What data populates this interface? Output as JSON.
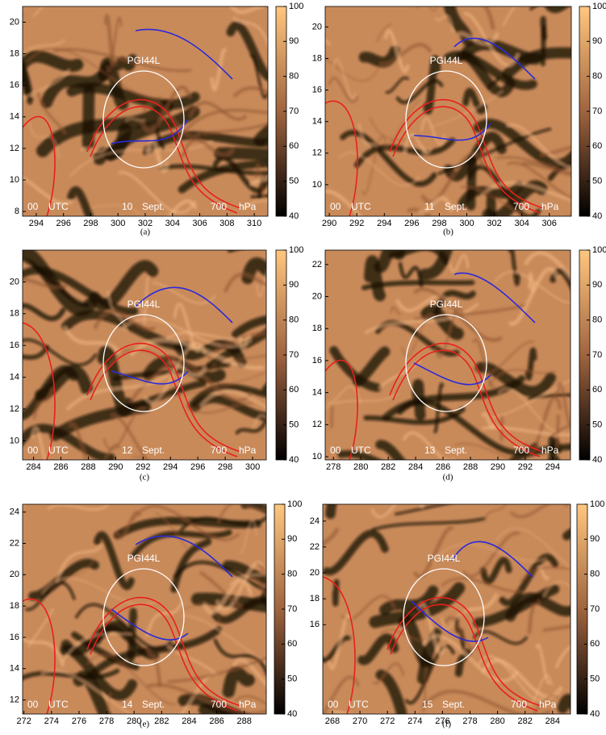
{
  "chart_data": [
    {
      "type": "heatmap",
      "label": "PGI44L",
      "time": "00",
      "time_unit": "UTC",
      "day": "10",
      "month": "Sept.",
      "level": "700",
      "level_unit": "hPa",
      "caption": "(a)",
      "xlim": [
        293,
        311
      ],
      "xticks": [
        294,
        296,
        298,
        300,
        302,
        304,
        306,
        308,
        310
      ],
      "ylim": [
        7.7,
        21
      ],
      "yticks": [
        8,
        10,
        12,
        14,
        16,
        18,
        20
      ],
      "clim": [
        40,
        100
      ],
      "cticks": [
        40,
        50,
        60,
        70,
        80,
        90,
        100
      ]
    },
    {
      "type": "heatmap",
      "label": "PGI44L",
      "time": "00",
      "time_unit": "UTC",
      "day": "11",
      "month": "Sept.",
      "level": "700",
      "level_unit": "hPa",
      "caption": "(b)",
      "xlim": [
        289.7,
        307.6
      ],
      "xticks": [
        290,
        292,
        294,
        296,
        298,
        300,
        302,
        304,
        306
      ],
      "ylim": [
        8,
        21.3
      ],
      "yticks": [
        10,
        12,
        14,
        16,
        18,
        20
      ],
      "clim": [
        40,
        100
      ],
      "cticks": [
        40,
        50,
        60,
        70,
        80,
        90,
        100
      ]
    },
    {
      "type": "heatmap",
      "label": "PGI44L",
      "time": "00",
      "time_unit": "UTC",
      "day": "12",
      "month": "Sept.",
      "level": "700",
      "level_unit": "hPa",
      "caption": "(c)",
      "xlim": [
        283.2,
        301
      ],
      "xticks": [
        284,
        286,
        288,
        290,
        292,
        294,
        296,
        298,
        300
      ],
      "ylim": [
        8.8,
        22
      ],
      "yticks": [
        10,
        12,
        14,
        16,
        18,
        20
      ],
      "clim": [
        40,
        100
      ],
      "cticks": [
        40,
        50,
        60,
        70,
        80,
        90,
        100
      ]
    },
    {
      "type": "heatmap",
      "label": "PGI44L",
      "time": "00",
      "time_unit": "UTC",
      "day": "13",
      "month": "Sept.",
      "level": "700",
      "level_unit": "hPa",
      "caption": "(d)",
      "xlim": [
        277.4,
        295.3
      ],
      "xticks": [
        278,
        280,
        282,
        284,
        286,
        288,
        290,
        292,
        294
      ],
      "ylim": [
        9.8,
        22.9
      ],
      "yticks": [
        10,
        12,
        14,
        16,
        18,
        20,
        22
      ],
      "clim": [
        40,
        100
      ],
      "cticks": [
        40,
        50,
        60,
        70,
        80,
        90,
        100
      ]
    },
    {
      "type": "heatmap",
      "label": "PGI44L",
      "time": "00",
      "time_unit": "UTC",
      "day": "14",
      "month": "Sept.",
      "level": "700",
      "level_unit": "hPa",
      "caption": "(e)",
      "xlim": [
        271.9,
        289.6
      ],
      "xticks": [
        272,
        274,
        276,
        278,
        280,
        282,
        284,
        286,
        288
      ],
      "ylim": [
        11.1,
        24.5
      ],
      "yticks": [
        12,
        14,
        16,
        18,
        20,
        22,
        24
      ],
      "clim": [
        40,
        100
      ],
      "cticks": [
        40,
        50,
        60,
        70,
        80,
        90,
        100
      ]
    },
    {
      "type": "heatmap",
      "label": "PGI44L",
      "time": "00",
      "time_unit": "UTC",
      "day": "15",
      "month": "Sept.",
      "level": "700",
      "level_unit": "hPa",
      "caption": "(f)",
      "xlim": [
        267.3,
        285.3
      ],
      "xticks": [
        268,
        270,
        272,
        274,
        276,
        278,
        280,
        282,
        284
      ],
      "ylim": [
        9.1,
        25.3
      ],
      "yticks": [
        16,
        18,
        20,
        22,
        24
      ],
      "clim": [
        40,
        100
      ],
      "cticks": [
        40,
        50,
        60,
        70,
        80,
        90,
        100
      ]
    }
  ]
}
